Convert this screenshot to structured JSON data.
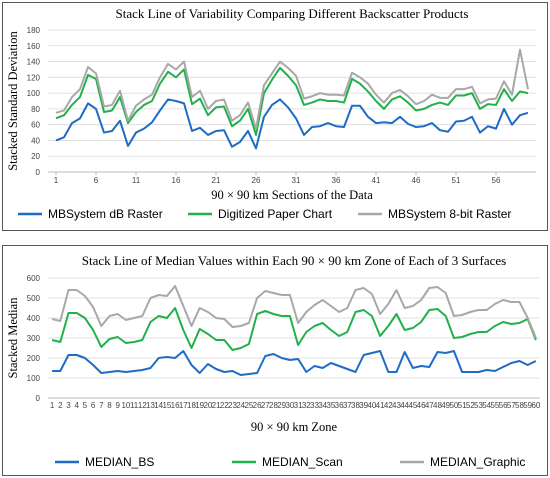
{
  "chart_data": [
    {
      "type": "line",
      "stacked": true,
      "title": "Stack Line of Variability Comparing Different Backscatter Products",
      "x_label": "90 × 90 km Sections of the Data",
      "y_label": "Stacked Standard Deviation",
      "x": [
        1,
        2,
        3,
        4,
        5,
        6,
        7,
        8,
        9,
        10,
        11,
        12,
        13,
        14,
        15,
        16,
        17,
        18,
        19,
        20,
        21,
        22,
        23,
        24,
        25,
        26,
        27,
        28,
        29,
        30,
        31,
        32,
        33,
        34,
        35,
        36,
        37,
        38,
        39,
        40,
        41,
        42,
        43,
        44,
        45,
        46,
        47,
        48,
        49,
        50,
        51,
        52,
        53,
        54,
        55,
        56,
        57,
        58,
        59,
        60
      ],
      "xlim": [
        0,
        61
      ],
      "xticks": [
        1,
        6,
        11,
        16,
        21,
        26,
        31,
        36,
        41,
        46,
        51,
        56
      ],
      "ylim": [
        0,
        180
      ],
      "yticks": [
        0,
        20,
        40,
        60,
        80,
        100,
        120,
        140,
        160,
        180
      ],
      "grid": true,
      "series": [
        {
          "name": "MBSystem dB Raster",
          "color": "#1f6cc4",
          "values": [
            40,
            44,
            62,
            68,
            87,
            80,
            50,
            52,
            65,
            33,
            50,
            55,
            63,
            78,
            92,
            90,
            87,
            52,
            56,
            47,
            52,
            53,
            32,
            38,
            52,
            30,
            70,
            85,
            92,
            82,
            68,
            47,
            57,
            58,
            62,
            58,
            57,
            84,
            84,
            70,
            62,
            63,
            62,
            70,
            61,
            57,
            58,
            62,
            53,
            51,
            64,
            65,
            70,
            50,
            58,
            55,
            80,
            60,
            72,
            75
          ]
        },
        {
          "name": "Digitized Paper Chart",
          "color": "#22b04b",
          "values": [
            28,
            28,
            23,
            27,
            36,
            38,
            26,
            26,
            30,
            29,
            26,
            30,
            27,
            34,
            35,
            30,
            43,
            34,
            37,
            25,
            30,
            30,
            26,
            27,
            28,
            17,
            30,
            32,
            40,
            40,
            42,
            38,
            31,
            34,
            28,
            32,
            31,
            34,
            28,
            32,
            28,
            17,
            30,
            26,
            27,
            21,
            22,
            23,
            35,
            34,
            33,
            32,
            30,
            30,
            28,
            30,
            25,
            30,
            30,
            25
          ]
        },
        {
          "name": "MBSystem 8-bit Raster",
          "color": "#a8a8a8",
          "values": [
            7,
            6,
            10,
            10,
            10,
            7,
            7,
            7,
            8,
            3,
            8,
            7,
            8,
            8,
            10,
            10,
            10,
            9,
            10,
            8,
            8,
            9,
            7,
            7,
            8,
            8,
            10,
            8,
            8,
            10,
            12,
            8,
            8,
            8,
            8,
            8,
            9,
            8,
            8,
            10,
            8,
            8,
            8,
            8,
            8,
            8,
            10,
            13,
            6,
            9,
            8,
            8,
            8,
            7,
            6,
            8,
            10,
            8,
            53,
            5
          ]
        }
      ]
    },
    {
      "type": "line",
      "stacked": true,
      "title": "Stack Line of Median Values within Each 90 × 90 km Zone of Each of 3 Surfaces",
      "x_label": "90 × 90 km Zone",
      "y_label": "Stacked Median",
      "categories": [
        "1",
        "2",
        "3",
        "4",
        "5",
        "6",
        "7",
        "8",
        "9",
        "10",
        "11",
        "12",
        "13",
        "14",
        "15",
        "16",
        "17",
        "18",
        "19",
        "20",
        "21",
        "22",
        "23",
        "24",
        "25",
        "26",
        "27",
        "28",
        "29",
        "30",
        "31",
        "32",
        "33",
        "34",
        "35",
        "36",
        "37",
        "38",
        "39",
        "40",
        "41",
        "42",
        "43",
        "44",
        "45",
        "46",
        "47",
        "48",
        "49",
        "50",
        "51",
        "52",
        "53",
        "54",
        "55",
        "56",
        "57",
        "58",
        "59",
        "60"
      ],
      "ylim": [
        0,
        600
      ],
      "yticks": [
        0,
        100,
        200,
        300,
        400,
        500,
        600
      ],
      "grid": true,
      "series": [
        {
          "name": "MEDIAN_BS",
          "color": "#1f6cc4",
          "values": [
            135,
            135,
            215,
            215,
            200,
            165,
            125,
            130,
            135,
            130,
            135,
            140,
            150,
            200,
            205,
            200,
            235,
            165,
            125,
            170,
            145,
            130,
            135,
            115,
            120,
            125,
            210,
            220,
            200,
            190,
            195,
            130,
            160,
            150,
            175,
            160,
            145,
            130,
            215,
            225,
            235,
            130,
            130,
            230,
            150,
            160,
            155,
            230,
            225,
            235,
            130,
            130,
            130,
            140,
            135,
            155,
            175,
            185,
            165,
            185
          ]
        },
        {
          "name": "MEDIAN_Scan",
          "color": "#22b04b",
          "values": [
            155,
            145,
            210,
            210,
            200,
            175,
            130,
            165,
            170,
            145,
            145,
            150,
            230,
            210,
            195,
            250,
            105,
            85,
            220,
            150,
            145,
            160,
            105,
            135,
            150,
            295,
            225,
            200,
            210,
            220,
            70,
            200,
            200,
            225,
            165,
            150,
            185,
            300,
            225,
            185,
            75,
            230,
            290,
            110,
            200,
            220,
            285,
            215,
            185,
            65,
            175,
            190,
            200,
            190,
            225,
            225,
            195,
            190,
            230,
            105
          ]
        },
        {
          "name": "MEDIAN_Graphic",
          "color": "#a8a8a8",
          "values": [
            105,
            105,
            115,
            115,
            110,
            115,
            105,
            115,
            115,
            115,
            120,
            120,
            120,
            105,
            110,
            110,
            120,
            110,
            105,
            110,
            110,
            105,
            115,
            110,
            105,
            80,
            100,
            105,
            105,
            105,
            110,
            100,
            105,
            115,
            120,
            120,
            120,
            110,
            110,
            110,
            110,
            110,
            120,
            110,
            110,
            110,
            110,
            110,
            115,
            110,
            110,
            110,
            110,
            110,
            110,
            110,
            110,
            105,
            5,
            10
          ]
        }
      ]
    }
  ]
}
